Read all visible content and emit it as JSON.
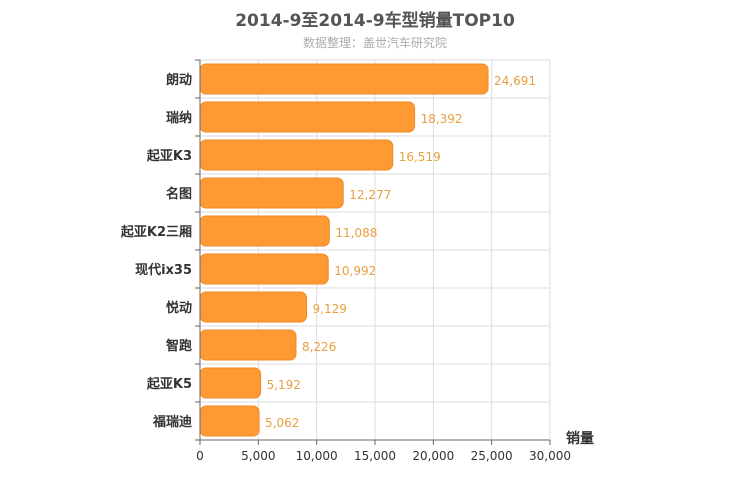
{
  "chart_data": {
    "type": "bar",
    "orientation": "horizontal",
    "title": "2014-9至2014-9车型销量TOP10",
    "subtitle": "数据整理：盖世汽车研究院",
    "xlabel": "销量",
    "ylabel": "",
    "categories": [
      "朗动",
      "瑞纳",
      "起亚K3",
      "名图",
      "起亚K2三厢",
      "现代ix35",
      "悦动",
      "智跑",
      "起亚K5",
      "福瑞迪"
    ],
    "values": [
      24691,
      18392,
      16519,
      12277,
      11088,
      10992,
      9129,
      8226,
      5192,
      5062
    ],
    "value_labels": [
      "24,691",
      "18,392",
      "16,519",
      "12,277",
      "11,088",
      "10,992",
      "9,129",
      "8,226",
      "5,192",
      "5,062"
    ],
    "xlim": [
      0,
      30000
    ],
    "x_ticks": [
      0,
      5000,
      10000,
      15000,
      20000,
      25000,
      30000
    ],
    "x_tick_labels": [
      "0",
      "5,000",
      "10,000",
      "15,000",
      "20,000",
      "25,000",
      "30,000"
    ],
    "grid": true,
    "colors": {
      "bar": "#ff9933",
      "bar_stroke": "#f08a20",
      "data_label": "#e8a040",
      "grid": "#dddddd",
      "axis": "#666666"
    }
  }
}
